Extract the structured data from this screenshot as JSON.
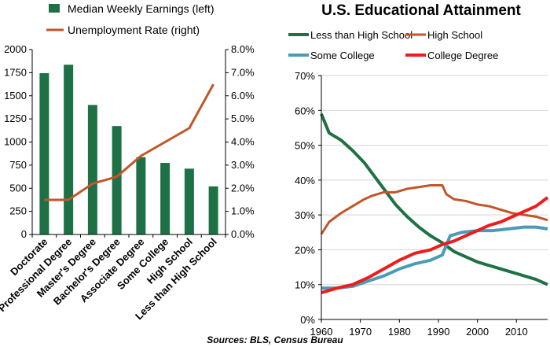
{
  "source_note": "Sources: BLS, Census Bureau",
  "colors": {
    "earnings": "#1e7145",
    "unemployment": "#c0562a",
    "less_hs": "#1e7145",
    "hs": "#c0562a",
    "some_college": "#4a9bb8",
    "college": "#ee1c1c"
  },
  "chart_data": [
    {
      "type": "bar",
      "title": "",
      "categories": [
        "Doctorate",
        "Professional Degree",
        "Master's Degree",
        "Bachelor's Degree",
        "Associate Degree",
        "Some College",
        "High School",
        "Less than High School"
      ],
      "series": [
        {
          "name": "Median Weekly Earnings (left)",
          "type": "bar",
          "axis": "left",
          "values": [
            1745,
            1836,
            1401,
            1173,
            836,
            774,
            712,
            520
          ]
        },
        {
          "name": "Unemployment Rate (right)",
          "type": "line",
          "axis": "right",
          "values": [
            1.5,
            1.5,
            2.2,
            2.5,
            3.4,
            4.0,
            4.6,
            6.5
          ]
        }
      ],
      "y_left": {
        "ticks": [
          "0",
          "250",
          "500",
          "750",
          "1000",
          "1250",
          "1500",
          "1750",
          "2000"
        ],
        "ylim": [
          0,
          2000
        ]
      },
      "y_right": {
        "ticks": [
          "0.0%",
          "1.0%",
          "2.0%",
          "3.0%",
          "4.0%",
          "5.0%",
          "6.0%",
          "7.0%",
          "8.0%"
        ],
        "ylim": [
          0,
          8
        ]
      },
      "legend": "top"
    },
    {
      "type": "line",
      "title": "U.S. Educational Attainment",
      "xlim": [
        1960,
        2018
      ],
      "ylim": [
        0,
        70
      ],
      "x_ticks": [
        "1960",
        "1970",
        "1980",
        "1990",
        "2000",
        "2010"
      ],
      "y_ticks": [
        "0%",
        "10%",
        "20%",
        "30%",
        "40%",
        "50%",
        "60%",
        "70%"
      ],
      "grid": true,
      "legend": "top",
      "series": [
        {
          "name": "Less than High School",
          "x": [
            1960,
            1962,
            1965,
            1968,
            1971,
            1973,
            1976,
            1979,
            1982,
            1985,
            1988,
            1991,
            1994,
            1997,
            2000,
            2003,
            2006,
            2009,
            2012,
            2015,
            2018
          ],
          "y": [
            59,
            53.5,
            51.5,
            48.5,
            45,
            42,
            37.5,
            33,
            29.5,
            26.5,
            24,
            22,
            19.5,
            18,
            16.5,
            15.5,
            14.5,
            13.5,
            12.5,
            11.5,
            10
          ]
        },
        {
          "name": "High School",
          "x": [
            1960,
            1962,
            1965,
            1968,
            1971,
            1973,
            1976,
            1979,
            1982,
            1985,
            1988,
            1991,
            1992,
            1994,
            1997,
            2000,
            2003,
            2006,
            2009,
            2012,
            2015,
            2018
          ],
          "y": [
            24.5,
            28,
            30.5,
            32.5,
            34.5,
            35.5,
            36.5,
            36.5,
            37.5,
            38,
            38.5,
            38.5,
            36,
            34.5,
            34,
            33,
            32.5,
            31.5,
            30.5,
            30,
            29.5,
            28.5
          ]
        },
        {
          "name": "Some College",
          "x": [
            1960,
            1964,
            1968,
            1972,
            1976,
            1980,
            1984,
            1988,
            1991,
            1993,
            1996,
            2000,
            2004,
            2008,
            2012,
            2015,
            2018
          ],
          "y": [
            9,
            9,
            9.5,
            11,
            12.5,
            14.5,
            16,
            17,
            18.5,
            24,
            25,
            25.5,
            25.5,
            26,
            26.5,
            26.5,
            26
          ]
        },
        {
          "name": "College Degree",
          "x": [
            1960,
            1964,
            1968,
            1972,
            1976,
            1980,
            1984,
            1988,
            1991,
            1994,
            1997,
            2000,
            2003,
            2006,
            2009,
            2012,
            2015,
            2018
          ],
          "y": [
            7.7,
            9,
            10,
            12,
            14.5,
            17,
            19,
            20,
            21.5,
            22.5,
            24,
            25.5,
            27,
            28,
            29.5,
            31,
            32.5,
            35
          ]
        }
      ]
    }
  ]
}
